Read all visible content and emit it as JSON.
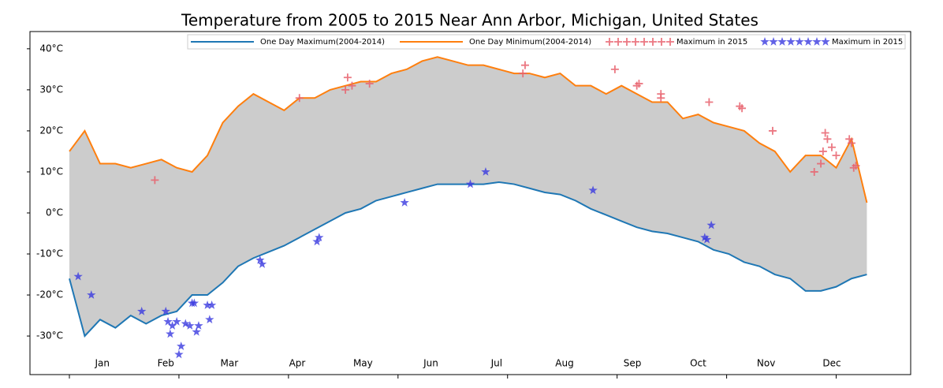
{
  "chart_data": {
    "type": "line",
    "title": "Temperature from 2005 to 2015 Near Ann Arbor, Michigan, United States",
    "xlim": [
      -18,
      384
    ],
    "ylim": [
      -39.4,
      44.2
    ],
    "xticks": [
      {
        "value": 15,
        "label": "Jan"
      },
      {
        "value": 44,
        "label": "Feb"
      },
      {
        "value": 73,
        "label": "Mar"
      },
      {
        "value": 104,
        "label": "Apr"
      },
      {
        "value": 134,
        "label": "May"
      },
      {
        "value": 165,
        "label": "Jun"
      },
      {
        "value": 195,
        "label": "Jul"
      },
      {
        "value": 226,
        "label": "Aug"
      },
      {
        "value": 257,
        "label": "Sep"
      },
      {
        "value": 287,
        "label": "Oct"
      },
      {
        "value": 318,
        "label": "Nov"
      },
      {
        "value": 348,
        "label": "Dec"
      }
    ],
    "xminorticks": [
      0,
      50,
      100,
      150,
      200,
      250,
      300,
      350
    ],
    "yticks": [
      {
        "value": -30,
        "label": "-30°C"
      },
      {
        "value": -20,
        "label": "-20°C"
      },
      {
        "value": -10,
        "label": "-10°C"
      },
      {
        "value": 0,
        "label": "0°C"
      },
      {
        "value": 10,
        "label": "10°C"
      },
      {
        "value": 20,
        "label": "20°C"
      },
      {
        "value": 30,
        "label": "30°C"
      },
      {
        "value": 40,
        "label": "40°C"
      }
    ],
    "fill_between": true,
    "fill_color": "#cccccc",
    "legend": "upper right",
    "x": [
      0,
      7,
      14,
      21,
      28,
      35,
      42,
      49,
      56,
      63,
      70,
      77,
      84,
      91,
      98,
      105,
      112,
      119,
      126,
      133,
      140,
      147,
      154,
      161,
      168,
      175,
      182,
      189,
      196,
      203,
      210,
      217,
      224,
      231,
      238,
      245,
      252,
      259,
      266,
      273,
      280,
      287,
      294,
      301,
      308,
      315,
      322,
      329,
      336,
      343,
      350,
      357,
      364
    ],
    "series": [
      {
        "name": "One Day Maximum(2004-2014)",
        "color": "#1f77b4",
        "values": [
          -16,
          -30,
          -26,
          -28,
          -25,
          -27,
          -25,
          -24,
          -20,
          -20,
          -17,
          -13,
          -11,
          -9.5,
          -8,
          -6,
          -4,
          -2,
          0,
          1,
          3,
          4,
          5,
          6,
          7,
          7,
          7,
          7,
          7.5,
          7,
          6,
          5,
          4.5,
          3,
          1,
          -0.5,
          -2,
          -3.5,
          -4.5,
          -5,
          -6,
          -7,
          -9,
          -10,
          -12,
          -13,
          -15,
          -16,
          -19,
          -19,
          -18,
          -16,
          -15
        ]
      },
      {
        "name": "One Day Minimum(2004-2014)",
        "color": "#ff7f0e",
        "values": [
          15,
          20,
          12,
          12,
          11,
          12,
          13,
          11,
          10,
          14,
          22,
          26,
          29,
          27,
          25,
          28,
          28,
          30,
          31,
          32,
          32,
          34,
          35,
          37,
          38,
          37,
          36,
          36,
          35,
          34,
          34,
          33,
          34,
          31,
          31,
          29,
          31,
          29,
          27,
          27,
          23,
          24,
          22,
          21,
          20,
          17,
          15,
          10,
          14,
          14,
          11,
          18,
          2.5
        ]
      },
      {
        "name": "Maximum in 2015",
        "color": "#e8606c",
        "marker": "plus",
        "x": [
          39,
          105,
          127,
          126,
          129,
          137,
          208,
          207,
          249,
          259,
          260,
          270,
          270,
          292,
          306,
          307,
          321,
          340,
          343,
          344,
          345,
          346,
          348,
          350,
          356,
          357,
          358,
          359
        ],
        "values": [
          8,
          28,
          33,
          30,
          31,
          31.5,
          36,
          34,
          35,
          31,
          31.5,
          29,
          28,
          27,
          26,
          25.5,
          20,
          10,
          12,
          15,
          19.5,
          18,
          16,
          14,
          18,
          17,
          11,
          11.5
        ]
      },
      {
        "name": "Maximum in 2015",
        "color": "#3a3ae0",
        "marker": "star",
        "x": [
          4,
          10,
          33,
          44,
          45,
          47,
          46,
          49,
          50,
          51,
          53,
          55,
          56,
          57,
          58,
          59,
          63,
          65,
          64,
          87,
          88,
          113,
          114,
          153,
          183,
          190,
          239,
          290,
          291,
          293
        ],
        "values": [
          -15.5,
          -20,
          -24,
          -24,
          -26.5,
          -27.5,
          -29.5,
          -26.5,
          -34.5,
          -32.5,
          -27,
          -27.5,
          -22,
          -22,
          -29,
          -27.5,
          -22.5,
          -22.5,
          -26,
          -11.5,
          -12.5,
          -7,
          -6,
          2.5,
          7,
          10,
          5.5,
          -6,
          -6.5,
          -3
        ]
      }
    ]
  }
}
